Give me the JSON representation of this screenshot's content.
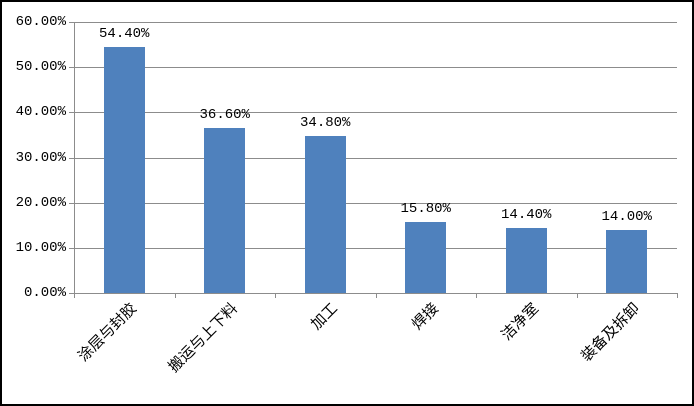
{
  "chart_data": {
    "type": "bar",
    "title": "",
    "xlabel": "",
    "ylabel": "",
    "categories": [
      "涂层与封胶",
      "搬运与上下料",
      "加工",
      "焊接",
      "洁净室",
      "装备及拆卸"
    ],
    "values": [
      54.4,
      36.6,
      34.8,
      15.8,
      14.4,
      14.0
    ],
    "data_labels": [
      "54.40%",
      "36.60%",
      "34.80%",
      "15.80%",
      "14.40%",
      "14.00%"
    ],
    "y_ticks": [
      "0.00%",
      "10.00%",
      "20.00%",
      "30.00%",
      "40.00%",
      "50.00%",
      "60.00%"
    ],
    "ylim": [
      0,
      60
    ],
    "y_step": 10,
    "grid": "horizontal",
    "legend": "none",
    "colors": {
      "bar": "#4F81BD",
      "gridline": "#8C8C8C",
      "axis": "#8C8C8C",
      "text": "#000000",
      "background": "#FFFFFF",
      "frame_border": "#000000"
    }
  }
}
